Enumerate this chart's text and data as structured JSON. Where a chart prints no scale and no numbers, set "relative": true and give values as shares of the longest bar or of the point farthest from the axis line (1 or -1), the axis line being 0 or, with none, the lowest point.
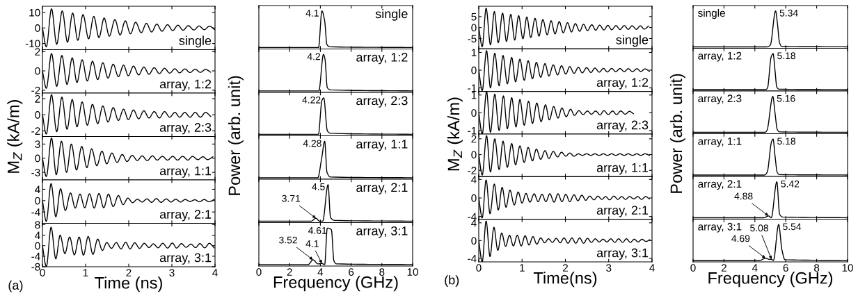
{
  "chart_data": [
    {
      "type": "line",
      "color": "#000000",
      "ylabel": "M$_{Z}$ (kA/m)",
      "xlim": [
        0,
        4
      ],
      "xticks": [
        0,
        1,
        2,
        3,
        4
      ],
      "ylim": [
        -14,
        14
      ],
      "yticks": [
        -10,
        0,
        10
      ],
      "tick_labels": "y",
      "annotations": [
        "single"
      ],
      "x": [
        0,
        0.09,
        0.21,
        0.33,
        0.46,
        0.58,
        0.7,
        0.82,
        0.94,
        1.07,
        1.19,
        1.31,
        1.43,
        1.55,
        1.68,
        1.8,
        1.92,
        2.04,
        2.16,
        2.29,
        2.41,
        2.53,
        2.65,
        2.77,
        2.9,
        3.02,
        3.14,
        3.26,
        3.38,
        3.51,
        3.63,
        3.75,
        3.87,
        3.99
      ],
      "values": [
        0,
        -12.2,
        12.4,
        -10.5,
        11,
        -9.2,
        9.6,
        -8,
        8.6,
        -7,
        7.5,
        -6.2,
        6.4,
        -5.3,
        5.4,
        -4.5,
        4.6,
        -3.8,
        3.7,
        -3.1,
        3.0,
        -2.6,
        2.5,
        -2.1,
        2.1,
        -1.7,
        1.8,
        -1.5,
        1.5,
        -1.3,
        1.3,
        -1.1,
        1.1,
        -1.0
      ]
    },
    {
      "type": "line",
      "color": "#000000",
      "xlim": [
        0,
        4
      ],
      "xticks": [
        0,
        1,
        2,
        3,
        4
      ],
      "ylim": [
        -2.3,
        2.2
      ],
      "yticks": [
        -2,
        0,
        2
      ],
      "tick_labels": "y",
      "annotations": [
        "array, 1:2"
      ],
      "x": [
        0,
        0.09,
        0.21,
        0.33,
        0.45,
        0.57,
        0.69,
        0.8,
        0.92,
        1.04,
        1.16,
        1.28,
        1.4,
        1.52,
        1.64,
        1.76,
        1.88,
        1.99,
        2.11,
        2.23,
        2.35,
        2.47,
        2.59,
        2.71,
        2.83,
        2.95,
        3.07,
        3.18,
        3.3,
        3.42,
        3.54,
        3.66,
        3.78,
        3.9
      ],
      "values": [
        0,
        -1.8,
        1.8,
        -1.6,
        1.6,
        -1.4,
        1.35,
        -1.2,
        1.15,
        -1.05,
        1.0,
        -0.9,
        0.85,
        -0.75,
        0.7,
        -0.6,
        0.6,
        -0.5,
        0.5,
        -0.42,
        0.4,
        -0.35,
        0.33,
        -0.28,
        0.27,
        -0.23,
        0.22,
        -0.2,
        0.2,
        -0.17,
        0.17,
        -0.15,
        0.15,
        -0.13
      ]
    },
    {
      "type": "line",
      "color": "#000000",
      "xlim": [
        0,
        4
      ],
      "xticks": [
        0,
        1,
        2,
        3,
        4
      ],
      "ylim": [
        -2.7,
        2.7
      ],
      "yticks": [
        -2,
        0,
        2
      ],
      "tick_labels": "y",
      "annotations": [
        "array, 2:3"
      ],
      "x": [
        0,
        0.09,
        0.21,
        0.33,
        0.45,
        0.57,
        0.69,
        0.8,
        0.92,
        1.04,
        1.16,
        1.28,
        1.4,
        1.52,
        1.64,
        1.76,
        1.88,
        1.99,
        2.11,
        2.23,
        2.35,
        2.47,
        2.59,
        2.71,
        2.83,
        2.95,
        3.07,
        3.18,
        3.3,
        3.42,
        3.54,
        3.66,
        3.78,
        3.9
      ],
      "values": [
        0,
        -2.4,
        2.5,
        -2.1,
        2.2,
        -1.8,
        1.9,
        -1.5,
        1.6,
        -1.3,
        1.3,
        -1.1,
        1.1,
        -0.9,
        0.9,
        -0.7,
        0.7,
        -0.6,
        0.6,
        -0.5,
        0.5,
        -0.4,
        0.4,
        -0.4,
        0.4,
        -0.3,
        0.3,
        -0.3,
        0.3,
        -0.3,
        0.3,
        -0.3,
        0.3,
        -0.2
      ]
    },
    {
      "type": "line",
      "color": "#000000",
      "xlim": [
        0,
        4
      ],
      "xticks": [
        0,
        1,
        2,
        3,
        4
      ],
      "ylim": [
        -4.6,
        4.6
      ],
      "yticks": [
        -3,
        0,
        3
      ],
      "tick_labels": "y",
      "annotations": [
        "array, 1:1"
      ],
      "x": [
        0,
        0.09,
        0.21,
        0.32,
        0.44,
        0.56,
        0.67,
        0.79,
        0.91,
        1.03,
        1.14,
        1.26,
        1.38,
        1.49,
        1.61,
        1.73,
        1.85,
        1.96,
        2.08,
        2.2,
        2.31,
        2.43,
        2.55,
        2.66,
        2.78,
        2.9,
        3.02,
        3.13,
        3.25,
        3.37,
        3.48,
        3.6,
        3.72,
        3.83,
        3.95
      ],
      "values": [
        0,
        -3.9,
        4.3,
        -3.5,
        3.6,
        -3.0,
        3.0,
        -2.5,
        2.5,
        -2.0,
        2.0,
        -1.6,
        1.5,
        -1.2,
        1.1,
        -0.9,
        0.8,
        -0.7,
        0.6,
        -0.5,
        0.5,
        -0.5,
        0.5,
        -0.4,
        0.4,
        -0.4,
        0.4,
        -0.4,
        0.4,
        -0.4,
        0.4,
        -0.3,
        0.3,
        -0.3,
        0.3
      ]
    },
    {
      "type": "line",
      "color": "#000000",
      "xlim": [
        0,
        4
      ],
      "xticks": [
        0,
        1,
        2,
        3,
        4
      ],
      "ylim": [
        -8,
        7.3
      ],
      "yticks": [
        -4,
        0,
        4
      ],
      "tick_labels": "y",
      "annotations": [
        "array, 2:1"
      ],
      "x": [
        0,
        0.09,
        0.2,
        0.31,
        0.42,
        0.53,
        0.65,
        0.76,
        0.87,
        0.98,
        1.09,
        1.2,
        1.31,
        1.42,
        1.53,
        1.64,
        1.76,
        1.87,
        1.98,
        2.09,
        2.2,
        2.31,
        2.42,
        2.53,
        2.64,
        2.75,
        2.87,
        2.98,
        3.09,
        3.2,
        3.31,
        3.42,
        3.53,
        3.64,
        3.75,
        3.86,
        3.98
      ],
      "values": [
        0,
        -7.3,
        6.0,
        -5.7,
        4.2,
        -3.5,
        2.7,
        -2.6,
        2.3,
        -2.5,
        2.4,
        -2.6,
        2.5,
        -2.5,
        2.3,
        -2.1,
        1.8,
        -1.4,
        0.9,
        -0.7,
        0.5,
        -0.5,
        0.6,
        -0.6,
        0.7,
        -0.6,
        0.6,
        -0.5,
        0.5,
        -0.5,
        0.4,
        -0.3,
        0.3,
        -0.4,
        0.4,
        -0.4,
        0.4
      ]
    },
    {
      "type": "line",
      "color": "#000000",
      "xlabel": "Time (ns)",
      "xlim": [
        0,
        4
      ],
      "xticks": [
        0,
        1,
        2,
        3,
        4
      ],
      "ylim": [
        -8,
        8.5
      ],
      "yticks": [
        -8,
        -4,
        0,
        4,
        8
      ],
      "annotations": [
        "array, 3:1",
        "(a)"
      ],
      "x": [
        0,
        0.09,
        0.2,
        0.31,
        0.41,
        0.52,
        0.63,
        0.74,
        0.85,
        0.95,
        1.06,
        1.17,
        1.28,
        1.39,
        1.49,
        1.6,
        1.71,
        1.82,
        1.93,
        2.03,
        2.14,
        2.25,
        2.36,
        2.47,
        2.57,
        2.68,
        2.79,
        2.9,
        3.01,
        3.11,
        3.22,
        3.33,
        3.44,
        3.55,
        3.65,
        3.76,
        3.87,
        3.98
      ],
      "values": [
        0,
        -8,
        7,
        -5,
        4,
        -3,
        3.3,
        -3.5,
        3.3,
        -3.6,
        3.5,
        -3.3,
        2.5,
        -1.8,
        1.2,
        -1.0,
        1.2,
        -1.2,
        1.3,
        -1.2,
        1.1,
        -1.0,
        0.9,
        -0.7,
        0.7,
        -0.8,
        0.9,
        -0.9,
        1.0,
        -0.9,
        0.8,
        -0.6,
        0.6,
        -0.7,
        0.8,
        -0.8,
        0.9,
        -0.8
      ]
    },
    {
      "type": "line",
      "color": "#000000",
      "relative": true,
      "ylabel": "Power (arb. unit)",
      "xlim": [
        0,
        10
      ],
      "xticks": [
        0,
        2,
        4,
        6,
        8,
        10
      ],
      "tick_labels": false,
      "annotations": [
        "single",
        {
          "text": "4.1",
          "x": 4.1,
          "y": 1
        }
      ],
      "x": [
        0,
        3.88,
        4.1,
        4.28,
        4.42,
        4.6,
        10
      ],
      "values": [
        0,
        0,
        1,
        0.73,
        0.09,
        0.02,
        0
      ]
    },
    {
      "type": "line",
      "color": "#000000",
      "relative": true,
      "xlim": [
        0,
        10
      ],
      "xticks": [
        0,
        2,
        4,
        6,
        8,
        10
      ],
      "tick_labels": false,
      "annotations": [
        "array, 1:2",
        {
          "text": "4.2",
          "x": 4.2,
          "y": 1
        }
      ],
      "x": [
        0,
        3.9,
        4.2,
        4.3,
        4.45,
        4.65,
        10
      ],
      "values": [
        0,
        0,
        1,
        0.87,
        0.09,
        0.03,
        0
      ]
    },
    {
      "type": "line",
      "color": "#000000",
      "relative": true,
      "xlim": [
        0,
        10
      ],
      "xticks": [
        0,
        2,
        4,
        6,
        8,
        10
      ],
      "tick_labels": false,
      "annotations": [
        "array, 2:3",
        {
          "text": "4.22",
          "x": 4.22,
          "y": 1
        }
      ],
      "x": [
        0,
        3.87,
        4.1,
        4.22,
        4.45,
        4.65,
        10
      ],
      "values": [
        0,
        0,
        0.93,
        1,
        0.1,
        0.03,
        0
      ]
    },
    {
      "type": "line",
      "color": "#000000",
      "relative": true,
      "xlim": [
        0,
        10
      ],
      "xticks": [
        0,
        2,
        4,
        6,
        8,
        10
      ],
      "tick_labels": false,
      "annotations": [
        "array, 1:1",
        {
          "text": "4.28",
          "x": 4.28,
          "y": 1
        }
      ],
      "x": [
        0,
        3.83,
        4.09,
        4.28,
        4.43,
        4.66,
        10
      ],
      "values": [
        0,
        0,
        0.55,
        1,
        0.15,
        0.02,
        0
      ]
    },
    {
      "type": "line",
      "color": "#000000",
      "relative": true,
      "xlim": [
        0,
        10
      ],
      "xticks": [
        0,
        2,
        4,
        6,
        8,
        10
      ],
      "tick_labels": false,
      "annotations": [
        "array, 2:1",
        {
          "text": "4.5",
          "x": 4.5,
          "y": 1
        },
        {
          "text": "3.71",
          "x": 3.71,
          "y": 0.08
        }
      ],
      "x": [
        0,
        3.4,
        3.71,
        3.95,
        4.15,
        4.5,
        4.66,
        4.95,
        10
      ],
      "values": [
        0,
        0,
        0.08,
        0,
        0,
        1,
        0.1,
        0.02,
        0
      ]
    },
    {
      "type": "line",
      "color": "#000000",
      "relative": true,
      "xlabel": "Frequency (GHz)",
      "xlim": [
        0,
        10
      ],
      "xticks": [
        0,
        2,
        4,
        6,
        8,
        10
      ],
      "annotations": [
        "array, 3:1",
        {
          "text": "4.61",
          "x": 4.61,
          "y": 0.99
        },
        {
          "text": "3.52",
          "x": 3.52,
          "y": 0.13
        },
        {
          "text": "4.1",
          "x": 4.1,
          "y": 0.03
        }
      ],
      "x": [
        0,
        3.2,
        3.52,
        3.85,
        4.1,
        4.28,
        4.45,
        4.61,
        4.72,
        4.88,
        5.05,
        10
      ],
      "values": [
        0,
        0,
        0.13,
        0.02,
        0.03,
        0,
        1,
        0.99,
        0.95,
        0.1,
        0.02,
        0
      ]
    },
    {
      "type": "line",
      "color": "#000000",
      "ylabel": "M$_{Z}$ (kA/m)",
      "xlim": [
        0,
        4
      ],
      "xticks": [
        0,
        1,
        2,
        3,
        4
      ],
      "ylim": [
        -9.7,
        9.7
      ],
      "yticks": [
        -5,
        0,
        5
      ],
      "tick_labels": "y",
      "annotations": [
        "single"
      ],
      "x": [
        0,
        0.08,
        0.17,
        0.27,
        0.36,
        0.45,
        0.55,
        0.64,
        0.74,
        0.83,
        0.92,
        1.02,
        1.11,
        1.2,
        1.3,
        1.39,
        1.48,
        1.58,
        1.67,
        1.76,
        1.86,
        1.95,
        2.05,
        2.14,
        2.23,
        2.33,
        2.42,
        2.51,
        2.61,
        2.7,
        2.79,
        2.89,
        2.98,
        3.07,
        3.17,
        3.26,
        3.36,
        3.45,
        3.54,
        3.64,
        3.73,
        3.82,
        3.92
      ],
      "values": [
        0,
        -8.7,
        8.8,
        -7.9,
        7.3,
        -6.9,
        6.6,
        -6.3,
        6.0,
        -5.7,
        5.4,
        -5.1,
        4.8,
        -4.5,
        4.2,
        -3.9,
        3.6,
        -3.3,
        3.1,
        -2.9,
        2.7,
        -2.4,
        2.2,
        -2.0,
        1.8,
        -1.7,
        1.5,
        -1.4,
        1.3,
        -1.2,
        1.1,
        -1.1,
        1.0,
        -1.0,
        0.9,
        -0.9,
        0.9,
        -0.8,
        0.8,
        -0.8,
        0.8,
        -0.7,
        0.7
      ]
    },
    {
      "type": "line",
      "color": "#000000",
      "xlim": [
        0,
        4
      ],
      "xticks": [
        0,
        1,
        2,
        3,
        4
      ],
      "ylim": [
        -1.2,
        1.2
      ],
      "yticks": [
        -1,
        0,
        1
      ],
      "tick_labels": "y",
      "annotations": [
        "array, 1:2"
      ],
      "x": [
        0,
        0.08,
        0.18,
        0.27,
        0.37,
        0.47,
        0.56,
        0.66,
        0.76,
        0.85,
        0.95,
        1.05,
        1.14,
        1.24,
        1.33,
        1.43,
        1.53,
        1.62,
        1.72,
        1.82,
        1.91,
        2.01,
        2.1,
        2.2,
        2.3,
        2.39,
        2.49,
        2.59,
        2.68,
        2.78,
        2.88,
        2.97,
        3.07,
        3.16,
        3.26,
        3.36,
        3.45,
        3.55,
        3.65,
        3.74,
        3.84,
        3.94
      ],
      "values": [
        0,
        -1.15,
        1.1,
        -1.0,
        0.95,
        -0.88,
        0.83,
        -0.77,
        0.72,
        -0.66,
        0.62,
        -0.57,
        0.53,
        -0.48,
        0.44,
        -0.4,
        0.37,
        -0.33,
        0.3,
        -0.27,
        0.25,
        -0.22,
        0.2,
        -0.18,
        0.16,
        -0.15,
        0.14,
        -0.13,
        0.12,
        -0.11,
        0.1,
        -0.1,
        0.1,
        -0.09,
        0.09,
        -0.08,
        0.08,
        -0.08,
        0.08,
        -0.07,
        0.07,
        -0.07
      ]
    },
    {
      "type": "line",
      "color": "#000000",
      "xlim": [
        0,
        4
      ],
      "xticks": [
        0,
        1,
        2,
        3,
        4
      ],
      "ylim": [
        -1.2,
        1.2
      ],
      "yticks": [
        -1,
        0,
        1
      ],
      "tick_labels": "y",
      "annotations": [
        "array, 2:3"
      ],
      "x": [
        0,
        0.08,
        0.18,
        0.27,
        0.37,
        0.47,
        0.57,
        0.66,
        0.76,
        0.86,
        0.95,
        1.05,
        1.15,
        1.24,
        1.34,
        1.44,
        1.54,
        1.63,
        1.73,
        1.83,
        1.92,
        2.02,
        2.12,
        2.21,
        2.31,
        2.41,
        2.51,
        2.6,
        2.7,
        2.8,
        2.89,
        2.99,
        3.09,
        3.18,
        3.28,
        3.38,
        3.48,
        3.57
      ],
      "values": [
        0,
        -1.2,
        1.2,
        -1.1,
        1.05,
        -1.0,
        0.95,
        -0.9,
        0.85,
        -0.8,
        0.75,
        -0.7,
        0.65,
        -0.6,
        0.55,
        -0.5,
        0.45,
        -0.4,
        0.35,
        -0.3,
        0.27,
        -0.22,
        0.2,
        -0.15,
        0.12,
        -0.1,
        0.1,
        -0.08,
        0.1,
        -0.12,
        0.12,
        -0.1,
        0.1,
        -0.1,
        0.1,
        -0.08,
        0.08,
        -0.05
      ]
    },
    {
      "type": "line",
      "color": "#000000",
      "xlim": [
        0,
        4
      ],
      "xticks": [
        0,
        1,
        2,
        3,
        4
      ],
      "ylim": [
        -2.8,
        2.6
      ],
      "yticks": [
        -2,
        0,
        2
      ],
      "tick_labels": "y",
      "annotations": [
        "array, 1:1"
      ],
      "x": [
        0,
        0.08,
        0.18,
        0.27,
        0.37,
        0.47,
        0.56,
        0.66,
        0.76,
        0.85,
        0.95,
        1.05,
        1.14,
        1.24,
        1.33,
        1.43,
        1.53,
        1.62,
        1.72,
        1.82,
        1.91,
        2.01,
        2.1,
        2.2,
        2.3,
        2.39,
        2.49,
        2.59,
        2.68,
        2.78,
        2.88,
        2.97,
        3.07,
        3.16,
        3.26,
        3.36,
        3.45,
        3.55,
        3.65,
        3.74,
        3.84,
        3.94
      ],
      "values": [
        0,
        -2.6,
        2.4,
        -2.2,
        2.0,
        -1.9,
        1.7,
        -1.6,
        1.4,
        -1.3,
        1.1,
        -1.0,
        0.9,
        -0.8,
        0.7,
        -0.6,
        0.5,
        -0.5,
        0.4,
        -0.3,
        0.3,
        -0.2,
        0.2,
        -0.2,
        0.1,
        -0.1,
        0.1,
        -0.1,
        0.1,
        -0.1,
        0.1,
        -0.1,
        0.1,
        -0.1,
        0.1,
        -0.1,
        0.1,
        -0.1,
        0.1,
        -0.1,
        0.1,
        -0.1
      ]
    },
    {
      "type": "line",
      "color": "#000000",
      "xlim": [
        0,
        4
      ],
      "xticks": [
        0,
        1,
        2,
        3,
        4
      ],
      "ylim": [
        -4.6,
        4.6
      ],
      "yticks": [
        -4,
        0,
        4
      ],
      "tick_labels": "y",
      "annotations": [
        "array, 2:1"
      ],
      "x": [
        0,
        0.08,
        0.17,
        0.26,
        0.36,
        0.45,
        0.54,
        0.63,
        0.72,
        0.82,
        0.91,
        1.0,
        1.09,
        1.18,
        1.28,
        1.37,
        1.46,
        1.55,
        1.64,
        1.74,
        1.83,
        1.92,
        2.01,
        2.1,
        2.2,
        2.29,
        2.38,
        2.47,
        2.56,
        2.66,
        2.75,
        2.84,
        2.93,
        3.02,
        3.12,
        3.21,
        3.3,
        3.39,
        3.48,
        3.58,
        3.67,
        3.76,
        3.85,
        3.94
      ],
      "values": [
        0,
        -4.3,
        3.9,
        -3.4,
        3.0,
        -2.6,
        2.3,
        -2.0,
        1.7,
        -1.5,
        1.3,
        -1.1,
        1.0,
        -0.9,
        0.9,
        -0.8,
        0.8,
        -0.8,
        0.9,
        -0.9,
        0.9,
        -0.8,
        0.8,
        -0.8,
        0.7,
        -0.6,
        0.6,
        -0.5,
        0.4,
        -0.4,
        0.4,
        -0.3,
        0.3,
        -0.4,
        0.4,
        -0.3,
        0.3,
        -0.3,
        0.3,
        -0.2,
        0.3,
        -0.3,
        0.3,
        -0.2
      ]
    },
    {
      "type": "line",
      "color": "#000000",
      "xlabel": "Time(ns)",
      "xlim": [
        0,
        4
      ],
      "xticks": [
        0,
        1,
        2,
        3,
        4
      ],
      "ylim": [
        -4.8,
        4.8
      ],
      "yticks": [
        -4,
        0,
        4
      ],
      "annotations": [
        "array, 3:1",
        "(b)"
      ],
      "x": [
        0,
        0.08,
        0.17,
        0.26,
        0.35,
        0.44,
        0.53,
        0.62,
        0.71,
        0.8,
        0.89,
        0.98,
        1.07,
        1.16,
        1.25,
        1.34,
        1.43,
        1.52,
        1.61,
        1.7,
        1.79,
        1.88,
        1.97,
        2.06,
        2.15,
        2.24,
        2.33,
        2.42,
        2.51,
        2.6,
        2.69,
        2.78,
        2.87,
        2.96,
        3.05,
        3.14,
        3.23,
        3.32,
        3.41,
        3.5,
        3.59,
        3.68,
        3.77,
        3.86,
        3.95
      ],
      "values": [
        0,
        -4.8,
        4.4,
        -3.6,
        3.0,
        -2.2,
        1.7,
        -1.3,
        1.2,
        -1.2,
        1.2,
        -1.2,
        1.1,
        -1.0,
        0.9,
        -0.8,
        0.6,
        -0.5,
        0.4,
        -0.4,
        0.5,
        -0.5,
        0.6,
        -0.6,
        0.6,
        -0.6,
        0.6,
        -0.6,
        0.5,
        -0.4,
        0.4,
        -0.3,
        0.3,
        -0.3,
        0.4,
        -0.4,
        0.4,
        -0.4,
        0.4,
        -0.4,
        0.3,
        -0.3,
        0.3,
        -0.2,
        0.2
      ]
    },
    {
      "type": "line",
      "color": "#000000",
      "relative": true,
      "ylabel": "Power (arb. unit)",
      "xlim": [
        0,
        10
      ],
      "xticks": [
        0,
        2,
        4,
        6,
        8,
        10
      ],
      "tick_labels": false,
      "annotations": [
        "single",
        {
          "text": "5.34",
          "x": 5.34,
          "y": 1
        }
      ],
      "x": [
        0,
        4.8,
        5.0,
        5.34,
        5.45,
        5.6,
        5.75,
        10
      ],
      "values": [
        0,
        0,
        0.05,
        1,
        0.69,
        0.11,
        0.01,
        0
      ]
    },
    {
      "type": "line",
      "color": "#000000",
      "relative": true,
      "xlim": [
        0,
        10
      ],
      "xticks": [
        0,
        2,
        4,
        6,
        8,
        10
      ],
      "tick_labels": false,
      "annotations": [
        "array, 1:2",
        {
          "text": "5.18",
          "x": 5.18,
          "y": 1
        }
      ],
      "x": [
        0,
        4.7,
        4.82,
        5.05,
        5.18,
        5.3,
        5.42,
        5.57,
        10
      ],
      "values": [
        0,
        0,
        0.05,
        0.9,
        1,
        0.55,
        0.07,
        0.01,
        0
      ]
    },
    {
      "type": "line",
      "color": "#000000",
      "relative": true,
      "xlim": [
        0,
        10
      ],
      "xticks": [
        0,
        2,
        4,
        6,
        8,
        10
      ],
      "tick_labels": false,
      "annotations": [
        "array, 2:3",
        {
          "text": "5.16",
          "x": 5.16,
          "y": 1
        }
      ],
      "x": [
        0,
        4.65,
        4.78,
        5.16,
        5.3,
        5.45,
        5.6,
        10
      ],
      "values": [
        0,
        0,
        0.05,
        1,
        0.55,
        0.08,
        0.01,
        0
      ]
    },
    {
      "type": "line",
      "color": "#000000",
      "relative": true,
      "xlim": [
        0,
        10
      ],
      "xticks": [
        0,
        2,
        4,
        6,
        8,
        10
      ],
      "tick_labels": false,
      "annotations": [
        "array, 1:1",
        {
          "text": "5.18",
          "x": 5.18,
          "y": 1
        }
      ],
      "x": [
        0,
        4.62,
        4.8,
        5.08,
        5.18,
        5.3,
        5.45,
        5.6,
        10
      ],
      "values": [
        0,
        0,
        0.08,
        0.93,
        1,
        0.55,
        0.07,
        0.01,
        0
      ]
    },
    {
      "type": "line",
      "color": "#000000",
      "relative": true,
      "xlim": [
        0,
        10
      ],
      "xticks": [
        0,
        2,
        4,
        6,
        8,
        10
      ],
      "tick_labels": false,
      "annotations": [
        "array, 2:1",
        {
          "text": "5.42",
          "x": 5.42,
          "y": 1
        },
        {
          "text": "4.88",
          "x": 4.88,
          "y": 0.05
        }
      ],
      "x": [
        0,
        4.6,
        4.88,
        5.06,
        5.42,
        5.6,
        5.8,
        10
      ],
      "values": [
        0,
        0,
        0.05,
        0,
        1,
        0.1,
        0.02,
        0
      ]
    },
    {
      "type": "line",
      "color": "#000000",
      "relative": true,
      "xlabel": "Frequency (GHz)",
      "xlim": [
        0,
        10
      ],
      "xticks": [
        0,
        2,
        4,
        6,
        8,
        10
      ],
      "annotations": [
        "array, 3:1",
        {
          "text": "5.54",
          "x": 5.54,
          "y": 1
        },
        {
          "text": "4.69",
          "x": 4.69,
          "y": 0.06
        },
        {
          "text": "5.08",
          "x": 5.08,
          "y": 0.03
        }
      ],
      "x": [
        0,
        4.3,
        4.69,
        4.95,
        5.08,
        5.2,
        5.54,
        5.75,
        5.95,
        10
      ],
      "values": [
        0,
        0,
        0.06,
        0.03,
        0.03,
        0,
        1,
        0.3,
        0.02,
        0
      ]
    }
  ]
}
